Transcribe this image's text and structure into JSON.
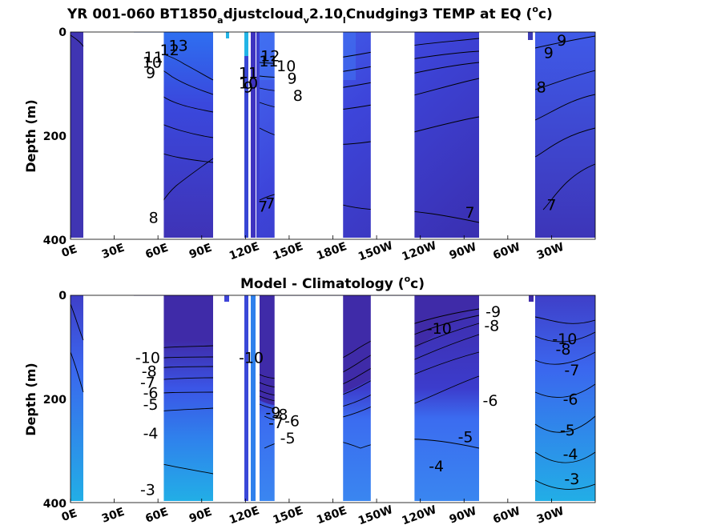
{
  "chart_data": [
    {
      "type": "heatmap",
      "panel": "top",
      "title_parts": {
        "a": "YR 001-060 BT1850",
        "b": "a",
        "c": "djustcloud",
        "d": "v",
        "e": "2.10",
        "f": "l",
        "g": "Cnudging3 TEMP at EQ (",
        "h": "o",
        "i": "c)"
      },
      "ylabel": "Depth (m)",
      "x_ticks": [
        "0E",
        "30E",
        "60E",
        "90E",
        "120E",
        "150E",
        "180E",
        "150W",
        "120W",
        "90W",
        "60W",
        "30W"
      ],
      "y_ticks": [
        "0",
        "200",
        "400"
      ],
      "ylim": [
        0,
        400
      ],
      "x_axis": "longitude (degrees east, 0 to 360)",
      "land_gaps_lon": [
        [
          13,
          64
        ],
        [
          140,
          187
        ],
        [
          206,
          236
        ]
      ],
      "colors": {
        "deep": "#3f2ba8",
        "mid": "#3b4fe0",
        "warm": "#2f8ee8",
        "surface": "#22b4e6"
      },
      "contour_labels": [
        {
          "text": "13",
          "lon": 74,
          "depth": 28
        },
        {
          "text": "12",
          "lon": 68,
          "depth": 36
        },
        {
          "text": "11",
          "lon": 57,
          "depth": 50
        },
        {
          "text": "10",
          "lon": 56,
          "depth": 60
        },
        {
          "text": "9",
          "lon": 55,
          "depth": 80
        },
        {
          "text": "8",
          "lon": 57,
          "depth": 360
        },
        {
          "text": "12",
          "lon": 137,
          "depth": 48
        },
        {
          "text": "11",
          "lon": 136,
          "depth": 58
        },
        {
          "text": "10",
          "lon": 148,
          "depth": 67
        },
        {
          "text": "9",
          "lon": 152,
          "depth": 91
        },
        {
          "text": "8",
          "lon": 156,
          "depth": 124
        },
        {
          "text": "7",
          "lon": 274,
          "depth": 350
        },
        {
          "text": "7",
          "lon": 330,
          "depth": 335
        },
        {
          "text": "8",
          "lon": 323,
          "depth": 108
        },
        {
          "text": "9",
          "lon": 328,
          "depth": 42
        },
        {
          "text": "9",
          "lon": 337,
          "depth": 18
        },
        {
          "text": "7",
          "lon": 132,
          "depth": 338
        },
        {
          "text": "7",
          "lon": 137,
          "depth": 332
        },
        {
          "text": "11",
          "lon": 122,
          "depth": 80
        },
        {
          "text": "10",
          "lon": 122,
          "depth": 100
        },
        {
          "text": "9",
          "lon": 122,
          "depth": 108
        }
      ]
    },
    {
      "type": "heatmap",
      "panel": "bottom",
      "title_parts": {
        "a": "Model - Climatology (",
        "h": "o",
        "i": "c)"
      },
      "ylabel": "Depth (m)",
      "x_ticks": [
        "0E",
        "30E",
        "60E",
        "90E",
        "120E",
        "150E",
        "180E",
        "150W",
        "120W",
        "90W",
        "60W",
        "30W"
      ],
      "y_ticks": [
        "0",
        "200",
        "400"
      ],
      "ylim": [
        0,
        400
      ],
      "land_gaps_lon": [
        [
          13,
          64
        ],
        [
          140,
          187
        ],
        [
          206,
          236
        ]
      ],
      "colors": {
        "deep": "#3f2ba8",
        "mid": "#3b4fe0",
        "warm": "#2f8ee8",
        "surface": "#22b4e6"
      },
      "contour_labels": [
        {
          "text": "-10",
          "lon": 53,
          "depth": 122
        },
        {
          "text": "-8",
          "lon": 54,
          "depth": 148
        },
        {
          "text": "-7",
          "lon": 53,
          "depth": 170
        },
        {
          "text": "-6",
          "lon": 55,
          "depth": 190
        },
        {
          "text": "-5",
          "lon": 55,
          "depth": 212
        },
        {
          "text": "-4",
          "lon": 55,
          "depth": 268
        },
        {
          "text": "-3",
          "lon": 53,
          "depth": 377
        },
        {
          "text": "-10",
          "lon": 124,
          "depth": 122
        },
        {
          "text": "-9",
          "lon": 139,
          "depth": 228
        },
        {
          "text": "-8",
          "lon": 144,
          "depth": 232
        },
        {
          "text": "-7",
          "lon": 141,
          "depth": 248
        },
        {
          "text": "-6",
          "lon": 152,
          "depth": 244
        },
        {
          "text": "-5",
          "lon": 149,
          "depth": 277
        },
        {
          "text": "-4",
          "lon": 251,
          "depth": 331
        },
        {
          "text": "-5",
          "lon": 271,
          "depth": 275
        },
        {
          "text": "-6",
          "lon": 288,
          "depth": 205
        },
        {
          "text": "-10",
          "lon": 253,
          "depth": 66
        },
        {
          "text": "-9",
          "lon": 290,
          "depth": 33
        },
        {
          "text": "-8",
          "lon": 289,
          "depth": 60
        },
        {
          "text": "-10",
          "lon": 339,
          "depth": 86
        },
        {
          "text": "-8",
          "lon": 338,
          "depth": 106
        },
        {
          "text": "-7",
          "lon": 344,
          "depth": 146
        },
        {
          "text": "-6",
          "lon": 343,
          "depth": 202
        },
        {
          "text": "-5",
          "lon": 341,
          "depth": 262
        },
        {
          "text": "-4",
          "lon": 343,
          "depth": 308
        },
        {
          "text": "-3",
          "lon": 344,
          "depth": 356
        }
      ]
    }
  ]
}
